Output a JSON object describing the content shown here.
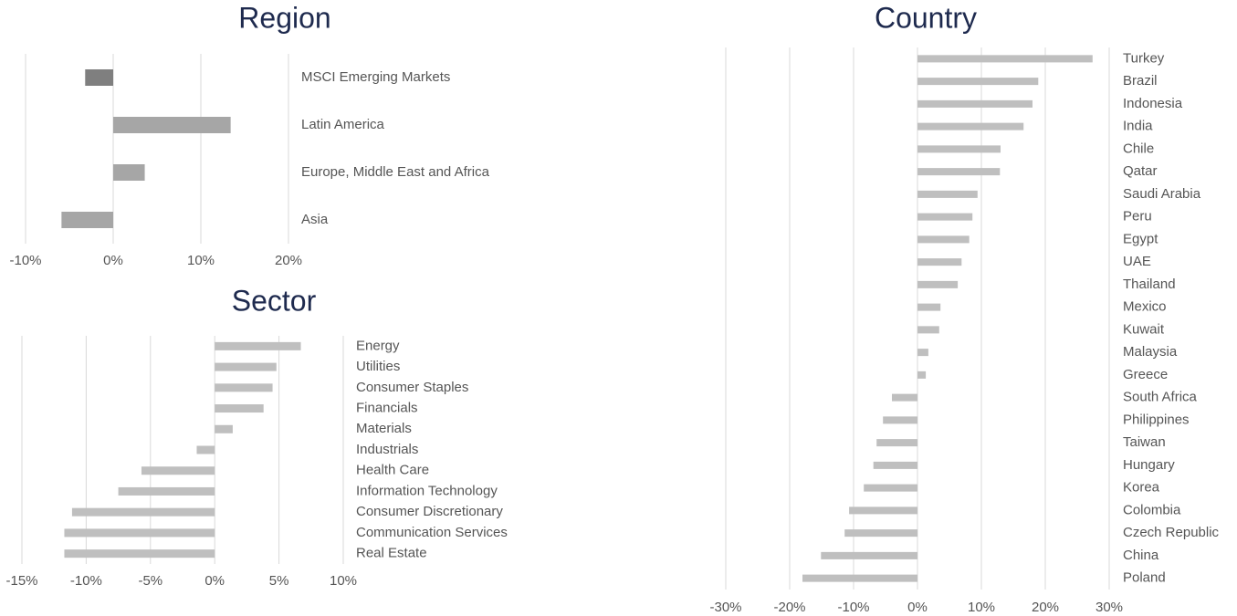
{
  "chart_data": [
    {
      "type": "bar",
      "orientation": "horizontal",
      "title": "Region",
      "categories": [
        "MSCI Emerging Markets",
        "Latin America",
        "Europe, Middle East and Africa",
        "Asia"
      ],
      "values": [
        -3.2,
        13.4,
        3.6,
        -5.9
      ],
      "colors": [
        "#7f7f7f",
        "#a6a6a6",
        "#a6a6a6",
        "#a6a6a6"
      ],
      "xlim": [
        -10,
        20
      ],
      "xticks": [
        {
          "value": -10,
          "label": "-10%"
        },
        {
          "value": 0,
          "label": "0%"
        },
        {
          "value": 10,
          "label": "10%"
        },
        {
          "value": 20,
          "label": "20%"
        }
      ],
      "grid": true
    },
    {
      "type": "bar",
      "orientation": "horizontal",
      "title": "Sector",
      "categories": [
        "Energy",
        "Utilities",
        "Consumer Staples",
        "Financials",
        "Materials",
        "Industrials",
        "Health Care",
        "Information Technology",
        "Consumer Discretionary",
        "Communication Services",
        "Real Estate"
      ],
      "values": [
        6.7,
        4.8,
        4.5,
        3.8,
        1.4,
        -1.4,
        -5.7,
        -7.5,
        -11.1,
        -11.7,
        -11.7
      ],
      "color": "#bfbfbf",
      "xlim": [
        -15,
        10
      ],
      "xticks": [
        {
          "value": -15,
          "label": "-15%"
        },
        {
          "value": -10,
          "label": "-10%"
        },
        {
          "value": -5,
          "label": "-5%"
        },
        {
          "value": 0,
          "label": "0%"
        },
        {
          "value": 5,
          "label": "5%"
        },
        {
          "value": 10,
          "label": "10%"
        }
      ],
      "grid": true
    },
    {
      "type": "bar",
      "orientation": "horizontal",
      "title": "Country",
      "categories": [
        "Turkey",
        "Brazil",
        "Indonesia",
        "India",
        "Chile",
        "Qatar",
        "Saudi Arabia",
        "Peru",
        "Egypt",
        "UAE",
        "Thailand",
        "Mexico",
        "Kuwait",
        "Malaysia",
        "Greece",
        "South Africa",
        "Philippines",
        "Taiwan",
        "Hungary",
        "Korea",
        "Colombia",
        "Czech Republic",
        "China",
        "Poland"
      ],
      "values": [
        27.4,
        18.9,
        18.0,
        16.6,
        13.0,
        12.9,
        9.4,
        8.6,
        8.1,
        6.9,
        6.3,
        3.6,
        3.4,
        1.7,
        1.3,
        -4.0,
        -5.4,
        -6.4,
        -6.9,
        -8.4,
        -10.7,
        -11.4,
        -15.1,
        -18.0
      ],
      "color": "#bfbfbf",
      "xlim": [
        -30,
        30
      ],
      "xticks": [
        {
          "value": -30,
          "label": "-30%"
        },
        {
          "value": -20,
          "label": "-20%"
        },
        {
          "value": -10,
          "label": "-10%"
        },
        {
          "value": 0,
          "label": "0%"
        },
        {
          "value": 10,
          "label": "10%"
        },
        {
          "value": 20,
          "label": "20%"
        },
        {
          "value": 30,
          "label": "30%"
        }
      ],
      "grid": true
    }
  ]
}
